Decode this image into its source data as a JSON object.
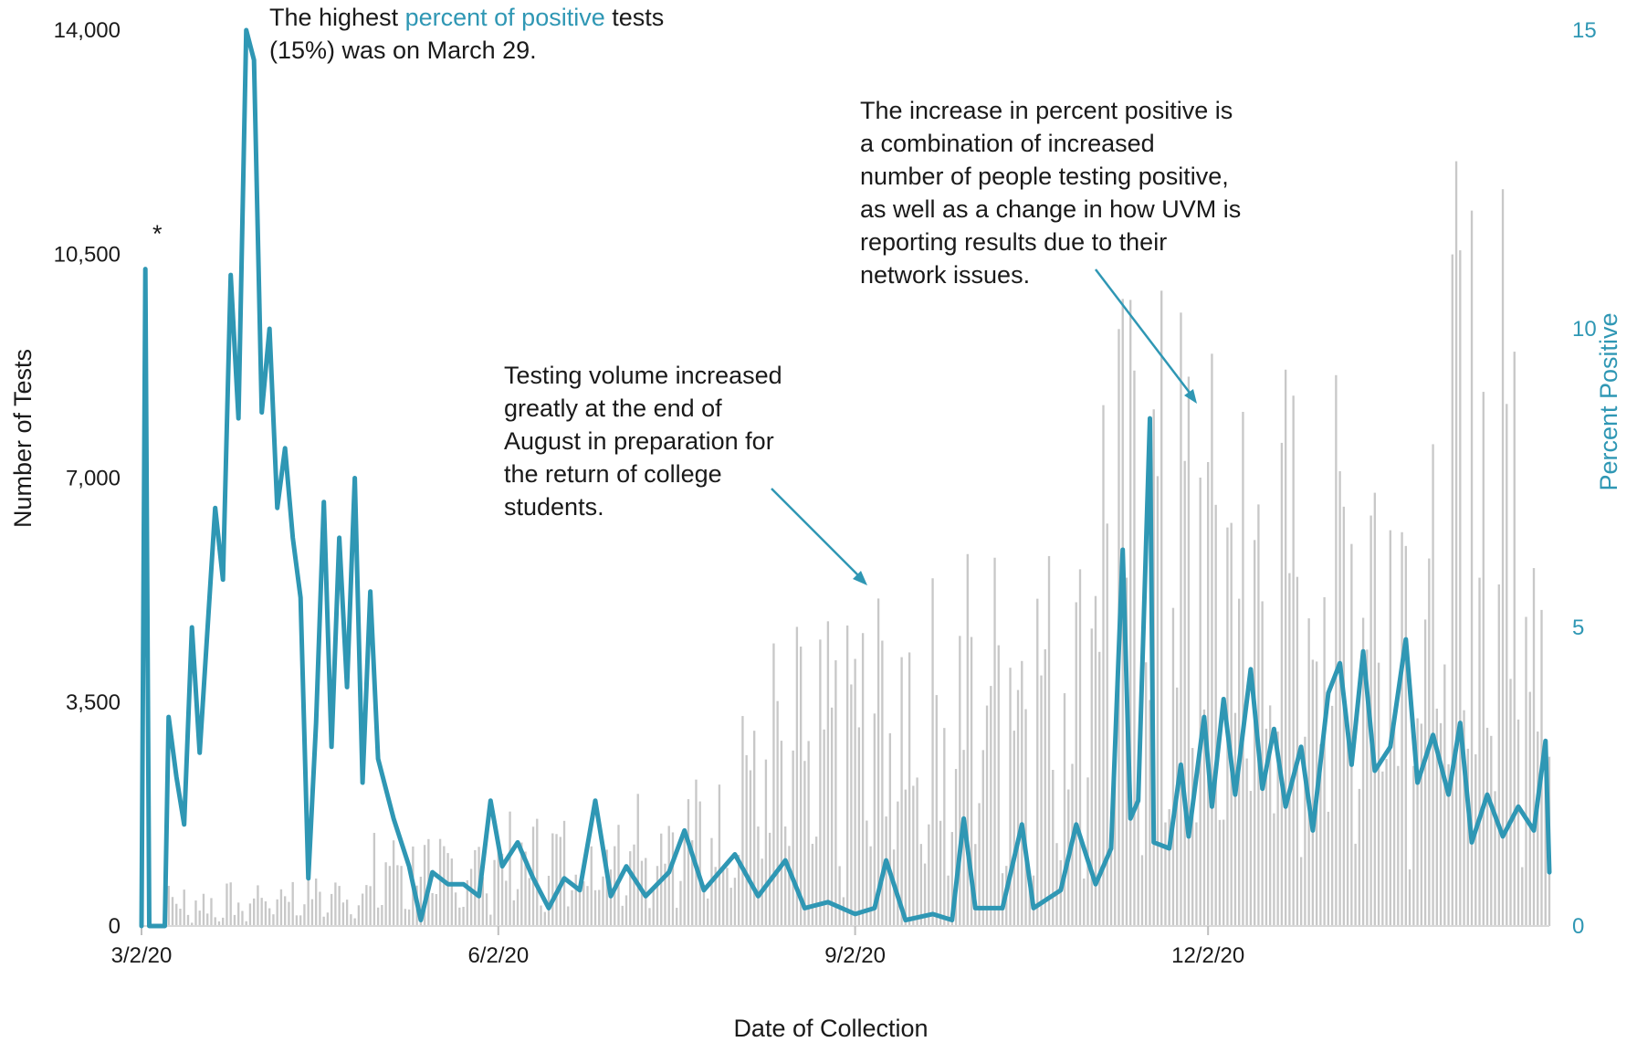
{
  "chart_data": {
    "type": "bar+line",
    "xlabel": "Date of Collection",
    "ylabel": "Number of Tests",
    "y2label": "Percent Positive",
    "ylim": [
      0,
      14000
    ],
    "y2lim": [
      0,
      15
    ],
    "yticks": [
      "0",
      "3,500",
      "7,000",
      "10,500",
      "14,000"
    ],
    "y2ticks": [
      "0",
      "5",
      "10",
      "15"
    ],
    "xticks": [
      "3/2/20",
      "6/2/20",
      "9/2/20",
      "12/2/20"
    ],
    "x_start_date": "2020-03-02",
    "x_end_date": "2021-02-28",
    "colors": {
      "bars": "#c8c8c8",
      "line": "#2f97b4",
      "arrow": "#2f97b4"
    },
    "series": [
      {
        "kind": "bar",
        "axis": "left",
        "description": "Number of tests per day (approximate, by month)",
        "monthly_levels": [
          {
            "month": "Mar 2020",
            "low": 100,
            "high": 700
          },
          {
            "month": "Apr 2020",
            "low": 300,
            "high": 800
          },
          {
            "month": "May 2020",
            "low": 500,
            "high": 1500
          },
          {
            "month": "Jun 2020",
            "low": 600,
            "high": 1800
          },
          {
            "month": "Jul 2020",
            "low": 800,
            "high": 2400
          },
          {
            "month": "Aug 2020",
            "low": 1000,
            "high": 4800
          },
          {
            "month": "Sep 2020",
            "low": 1500,
            "high": 5600
          },
          {
            "month": "Oct 2020",
            "low": 2000,
            "high": 6200
          },
          {
            "month": "Nov 2020",
            "low": 2500,
            "high": 10200
          },
          {
            "month": "Dec 2020",
            "low": 2500,
            "high": 9200
          },
          {
            "month": "Jan 2021",
            "low": 2500,
            "high": 10000
          },
          {
            "month": "Feb 2021",
            "low": 2500,
            "high": 12000
          }
        ]
      },
      {
        "kind": "line",
        "axis": "right",
        "name": "Percent Positive",
        "points": [
          [
            "2020-03-02",
            0
          ],
          [
            "2020-03-03",
            11
          ],
          [
            "2020-03-04",
            0
          ],
          [
            "2020-03-08",
            0
          ],
          [
            "2020-03-09",
            3.5
          ],
          [
            "2020-03-11",
            2.5
          ],
          [
            "2020-03-13",
            1.7
          ],
          [
            "2020-03-15",
            5.0
          ],
          [
            "2020-03-17",
            2.9
          ],
          [
            "2020-03-21",
            7.0
          ],
          [
            "2020-03-23",
            5.8
          ],
          [
            "2020-03-25",
            10.9
          ],
          [
            "2020-03-27",
            8.5
          ],
          [
            "2020-03-29",
            15.0
          ],
          [
            "2020-03-31",
            14.5
          ],
          [
            "2020-04-02",
            8.6
          ],
          [
            "2020-04-04",
            10.0
          ],
          [
            "2020-04-06",
            7.0
          ],
          [
            "2020-04-08",
            8.0
          ],
          [
            "2020-04-10",
            6.5
          ],
          [
            "2020-04-12",
            5.5
          ],
          [
            "2020-04-14",
            0.8
          ],
          [
            "2020-04-16",
            3.4
          ],
          [
            "2020-04-18",
            7.1
          ],
          [
            "2020-04-20",
            3.0
          ],
          [
            "2020-04-22",
            6.5
          ],
          [
            "2020-04-24",
            4.0
          ],
          [
            "2020-04-26",
            7.5
          ],
          [
            "2020-04-28",
            2.4
          ],
          [
            "2020-04-30",
            5.6
          ],
          [
            "2020-05-02",
            2.8
          ],
          [
            "2020-05-06",
            1.8
          ],
          [
            "2020-05-10",
            1.0
          ],
          [
            "2020-05-13",
            0.1
          ],
          [
            "2020-05-16",
            0.9
          ],
          [
            "2020-05-20",
            0.7
          ],
          [
            "2020-05-24",
            0.7
          ],
          [
            "2020-05-28",
            0.5
          ],
          [
            "2020-05-31",
            2.1
          ],
          [
            "2020-06-03",
            1.0
          ],
          [
            "2020-06-07",
            1.4
          ],
          [
            "2020-06-11",
            0.8
          ],
          [
            "2020-06-15",
            0.3
          ],
          [
            "2020-06-19",
            0.8
          ],
          [
            "2020-06-23",
            0.6
          ],
          [
            "2020-06-27",
            2.1
          ],
          [
            "2020-07-01",
            0.5
          ],
          [
            "2020-07-05",
            1.0
          ],
          [
            "2020-07-10",
            0.5
          ],
          [
            "2020-07-16",
            0.9
          ],
          [
            "2020-07-20",
            1.6
          ],
          [
            "2020-07-25",
            0.6
          ],
          [
            "2020-08-02",
            1.2
          ],
          [
            "2020-08-08",
            0.5
          ],
          [
            "2020-08-15",
            1.1
          ],
          [
            "2020-08-20",
            0.3
          ],
          [
            "2020-08-26",
            0.4
          ],
          [
            "2020-09-02",
            0.2
          ],
          [
            "2020-09-07",
            0.3
          ],
          [
            "2020-09-10",
            1.1
          ],
          [
            "2020-09-15",
            0.1
          ],
          [
            "2020-09-22",
            0.2
          ],
          [
            "2020-09-27",
            0.1
          ],
          [
            "2020-09-30",
            1.8
          ],
          [
            "2020-10-03",
            0.3
          ],
          [
            "2020-10-10",
            0.3
          ],
          [
            "2020-10-15",
            1.7
          ],
          [
            "2020-10-18",
            0.3
          ],
          [
            "2020-10-25",
            0.6
          ],
          [
            "2020-10-29",
            1.7
          ],
          [
            "2020-11-03",
            0.7
          ],
          [
            "2020-11-07",
            1.3
          ],
          [
            "2020-11-10",
            6.3
          ],
          [
            "2020-11-12",
            1.8
          ],
          [
            "2020-11-14",
            2.1
          ],
          [
            "2020-11-17",
            8.5
          ],
          [
            "2020-11-18",
            1.4
          ],
          [
            "2020-11-22",
            1.3
          ],
          [
            "2020-11-25",
            2.7
          ],
          [
            "2020-11-27",
            1.5
          ],
          [
            "2020-12-01",
            3.5
          ],
          [
            "2020-12-03",
            2.0
          ],
          [
            "2020-12-06",
            3.8
          ],
          [
            "2020-12-09",
            2.2
          ],
          [
            "2020-12-13",
            4.3
          ],
          [
            "2020-12-16",
            2.3
          ],
          [
            "2020-12-19",
            3.3
          ],
          [
            "2020-12-22",
            2.0
          ],
          [
            "2020-12-26",
            3.0
          ],
          [
            "2020-12-29",
            1.6
          ],
          [
            "2021-01-02",
            3.9
          ],
          [
            "2021-01-05",
            4.4
          ],
          [
            "2021-01-08",
            2.7
          ],
          [
            "2021-01-11",
            4.6
          ],
          [
            "2021-01-14",
            2.6
          ],
          [
            "2021-01-18",
            3.0
          ],
          [
            "2021-01-22",
            4.8
          ],
          [
            "2021-01-25",
            2.4
          ],
          [
            "2021-01-29",
            3.2
          ],
          [
            "2021-02-02",
            2.2
          ],
          [
            "2021-02-05",
            3.4
          ],
          [
            "2021-02-08",
            1.4
          ],
          [
            "2021-02-12",
            2.2
          ],
          [
            "2021-02-16",
            1.5
          ],
          [
            "2021-02-20",
            2.0
          ],
          [
            "2021-02-24",
            1.6
          ],
          [
            "2021-02-27",
            3.1
          ],
          [
            "2021-02-28",
            0.9
          ]
        ]
      }
    ],
    "annotations": {
      "asterisk": "*",
      "peak_note": {
        "prefix": "The highest ",
        "highlight": "percent of positive",
        "suffix": " tests",
        "line2": "(15%) was on March 29."
      },
      "volume_note": [
        "Testing volume increased",
        "greatly at the end of",
        "August in preparation for",
        "the return of college",
        "students."
      ],
      "uvm_note": [
        "The increase in percent positive is",
        "a combination of increased",
        "number of people testing positive,",
        "as well as a change in how UVM is",
        "reporting results due to their",
        "network issues."
      ]
    }
  }
}
